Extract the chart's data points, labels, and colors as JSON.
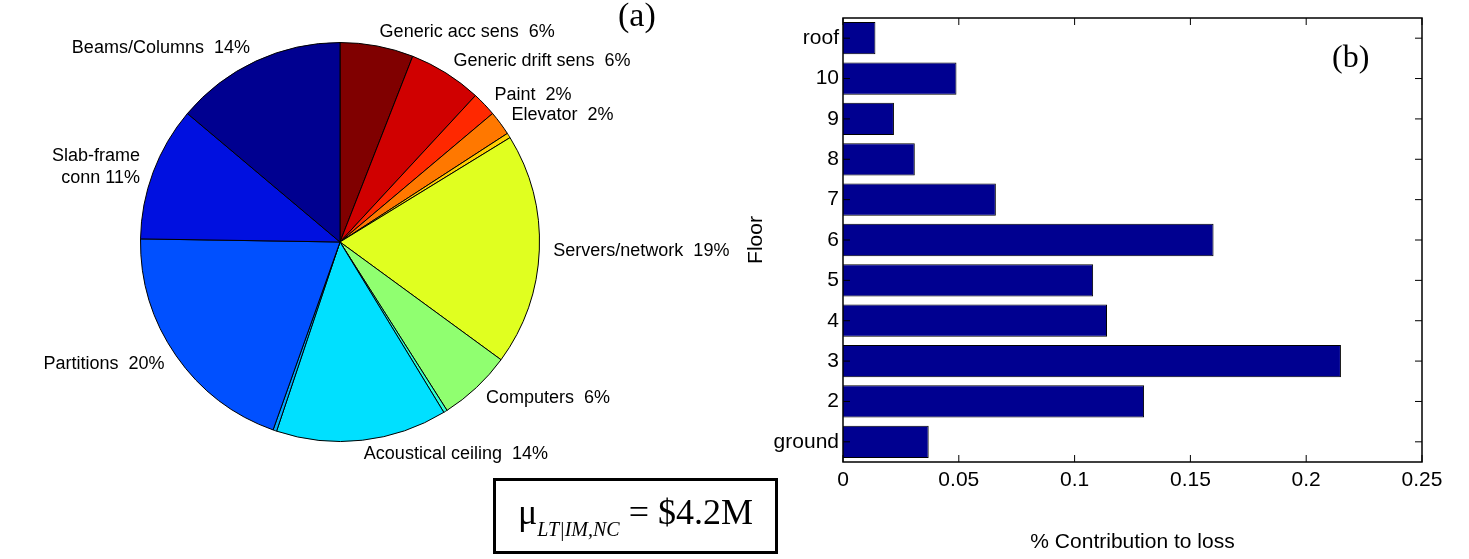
{
  "chart_data": [
    {
      "type": "pie",
      "categories": [
        "Generic acc sens",
        "Generic drift sens",
        "Paint",
        "Elevator",
        null,
        "Servers/network",
        "Computers",
        null,
        "Acoustical ceiling",
        null,
        "Partitions",
        "Slab-frame conn",
        "Beams/Columns"
      ],
      "values": [
        6,
        6,
        2,
        2,
        0.4,
        19,
        6,
        0.3,
        14,
        0.3,
        20,
        11,
        14
      ],
      "value_labels": [
        "6%",
        "6%",
        "2%",
        "2%",
        null,
        "19%",
        "6%",
        null,
        "14%",
        null,
        "20%",
        "11%",
        "14%"
      ],
      "colors": [
        "#800000",
        "#d00000",
        "#ff2800",
        "#ff7800",
        "#ffd000",
        "#e0ff20",
        "#90ff70",
        "#30ffd0",
        "#00e0ff",
        "#00a8ff",
        "#0050ff",
        "#0010e0",
        "#000090"
      ],
      "legend": false,
      "annotations": [
        "(a)",
        "μ$_{LT|IM,NC}$ = $4.2M"
      ]
    },
    {
      "type": "bar",
      "orientation": "horizontal",
      "categories": [
        "roof",
        "10",
        "9",
        "8",
        "7",
        "6",
        "5",
        "4",
        "3",
        "2",
        "ground"
      ],
      "values": [
        0.014,
        0.049,
        0.022,
        0.031,
        0.066,
        0.16,
        0.108,
        0.114,
        0.215,
        0.13,
        0.037
      ],
      "color": "#000090",
      "xlim": [
        0,
        0.25
      ],
      "xticks": [
        0,
        0.05,
        0.1,
        0.15,
        0.2,
        0.25
      ],
      "grid": false,
      "legend": false,
      "xlabel": "% Contribution to loss",
      "ylabel": "Floor",
      "annotations": [
        "(b)"
      ]
    }
  ]
}
